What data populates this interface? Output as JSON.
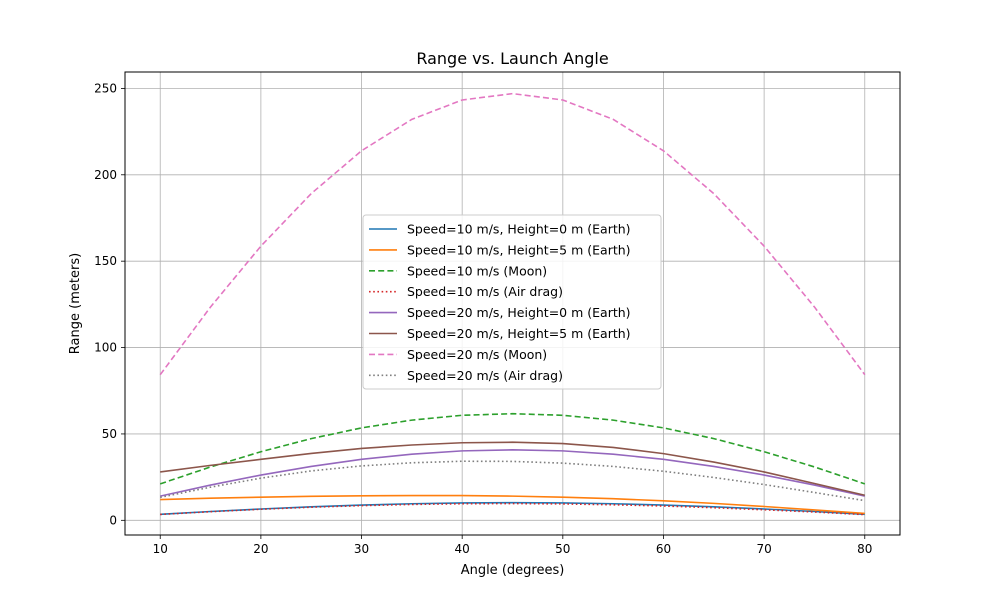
{
  "chart_data": {
    "type": "line",
    "title": "Range vs. Launch Angle",
    "xlabel": "Angle (degrees)",
    "ylabel": "Range (meters)",
    "xlim": [
      6.5,
      83.5
    ],
    "ylim": [
      -8.5,
      259.5
    ],
    "xticks": [
      10,
      20,
      30,
      40,
      50,
      60,
      70,
      80
    ],
    "yticks": [
      0,
      50,
      100,
      150,
      200,
      250
    ],
    "grid": true,
    "legend_position": "center",
    "x": [
      10,
      15,
      20,
      25,
      30,
      35,
      40,
      45,
      50,
      55,
      60,
      65,
      70,
      75,
      80
    ],
    "series": [
      {
        "name": "Speed=10 m/s, Height=0 m (Earth)",
        "color": "#1f77b4",
        "dash": "solid",
        "values": [
          3.49,
          5.1,
          6.55,
          7.81,
          8.83,
          9.58,
          10.04,
          10.19,
          10.04,
          9.58,
          8.83,
          7.81,
          6.55,
          5.1,
          3.49
        ]
      },
      {
        "name": "Speed=10 m/s, Height=5 m (Earth)",
        "color": "#ff7f0e",
        "dash": "solid",
        "values": [
          12.0,
          12.8,
          13.4,
          13.9,
          14.2,
          14.3,
          14.3,
          14.0,
          13.4,
          12.5,
          11.3,
          9.8,
          8.0,
          6.0,
          4.0
        ]
      },
      {
        "name": "Speed=10 m/s (Moon)",
        "color": "#2ca02c",
        "dash": "dashed",
        "values": [
          21.1,
          30.9,
          39.7,
          47.3,
          53.5,
          58.0,
          60.8,
          61.7,
          60.8,
          58.0,
          53.5,
          47.3,
          39.7,
          30.9,
          21.1
        ]
      },
      {
        "name": "Speed=10 m/s (Air drag)",
        "color": "#d62728",
        "dash": "dotted",
        "values": [
          3.4,
          5.0,
          6.4,
          7.6,
          8.5,
          9.2,
          9.6,
          9.7,
          9.5,
          9.0,
          8.3,
          7.3,
          6.1,
          4.8,
          3.3
        ]
      },
      {
        "name": "Speed=20 m/s, Height=0 m (Earth)",
        "color": "#9467bd",
        "dash": "solid",
        "values": [
          14.0,
          20.4,
          26.2,
          31.2,
          35.3,
          38.3,
          40.2,
          40.8,
          40.2,
          38.3,
          35.3,
          31.2,
          26.2,
          20.4,
          14.0
        ]
      },
      {
        "name": "Speed=20 m/s, Height=5 m (Earth)",
        "color": "#8c564b",
        "dash": "solid",
        "values": [
          28.0,
          31.8,
          35.3,
          38.7,
          41.6,
          43.6,
          44.9,
          45.2,
          44.4,
          42.2,
          38.6,
          33.7,
          28.0,
          21.3,
          14.5
        ]
      },
      {
        "name": "Speed=20 m/s (Moon)",
        "color": "#e377c2",
        "dash": "dashed",
        "values": [
          84.3,
          123.5,
          158.7,
          189.1,
          213.9,
          232.1,
          243.3,
          247.0,
          243.3,
          232.1,
          213.9,
          189.1,
          158.7,
          123.5,
          84.3
        ]
      },
      {
        "name": "Speed=20 m/s (Air drag)",
        "color": "#7f7f7f",
        "dash": "dotted",
        "values": [
          13.3,
          19.2,
          24.4,
          28.6,
          31.5,
          33.3,
          34.2,
          34.1,
          33.1,
          31.2,
          28.4,
          24.8,
          20.7,
          16.1,
          11.4
        ]
      }
    ]
  }
}
